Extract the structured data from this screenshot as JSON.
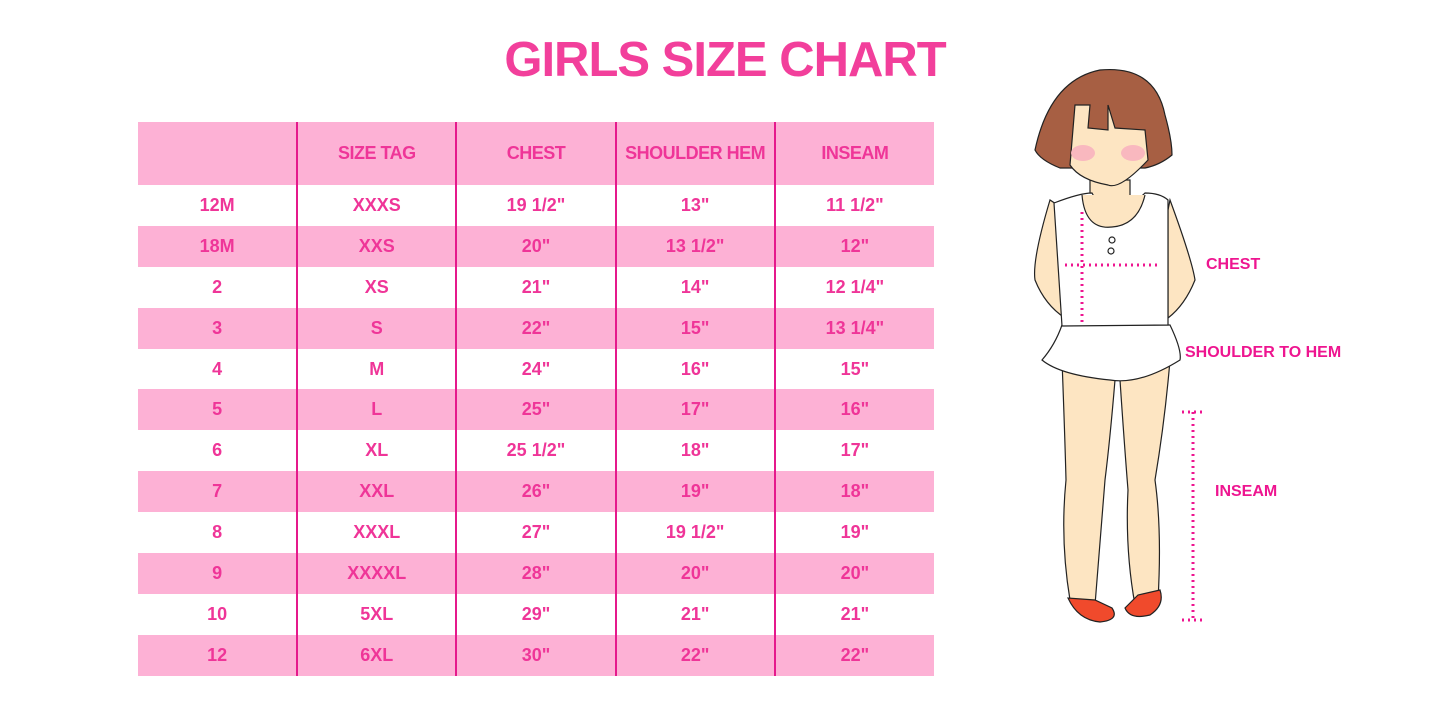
{
  "title": "GIRLS SIZE CHART",
  "table": {
    "headers": [
      "",
      "SIZE TAG",
      "CHEST",
      "SHOULDER HEM",
      "INSEAM"
    ],
    "rows": [
      [
        "12M",
        "XXXS",
        "19 1/2\"",
        "13\"",
        "11 1/2\""
      ],
      [
        "18M",
        "XXS",
        "20\"",
        "13 1/2\"",
        "12\""
      ],
      [
        "2",
        "XS",
        "21\"",
        "14\"",
        "12 1/4\""
      ],
      [
        "3",
        "S",
        "22\"",
        "15\"",
        "13 1/4\""
      ],
      [
        "4",
        "M",
        "24\"",
        "16\"",
        "15\""
      ],
      [
        "5",
        "L",
        "25\"",
        "17\"",
        "16\""
      ],
      [
        "6",
        "XL",
        "25 1/2\"",
        "18\"",
        "17\""
      ],
      [
        "7",
        "XXL",
        "26\"",
        "19\"",
        "18\""
      ],
      [
        "8",
        "XXXL",
        "27\"",
        "19 1/2\"",
        "19\""
      ],
      [
        "9",
        "XXXXL",
        "28\"",
        "20\"",
        "20\""
      ],
      [
        "10",
        "5XL",
        "29\"",
        "21\"",
        "21\""
      ],
      [
        "12",
        "6XL",
        "30\"",
        "22\"",
        "22\""
      ]
    ]
  },
  "illustration": {
    "labels": {
      "chest": "CHEST",
      "shoulder_to_hem": "SHOULDER TO HEM",
      "inseam": "INSEAM"
    }
  },
  "colors": {
    "accent": "#ef3598",
    "row_pink": "#fdb1d5",
    "divider": "#e5198c"
  }
}
